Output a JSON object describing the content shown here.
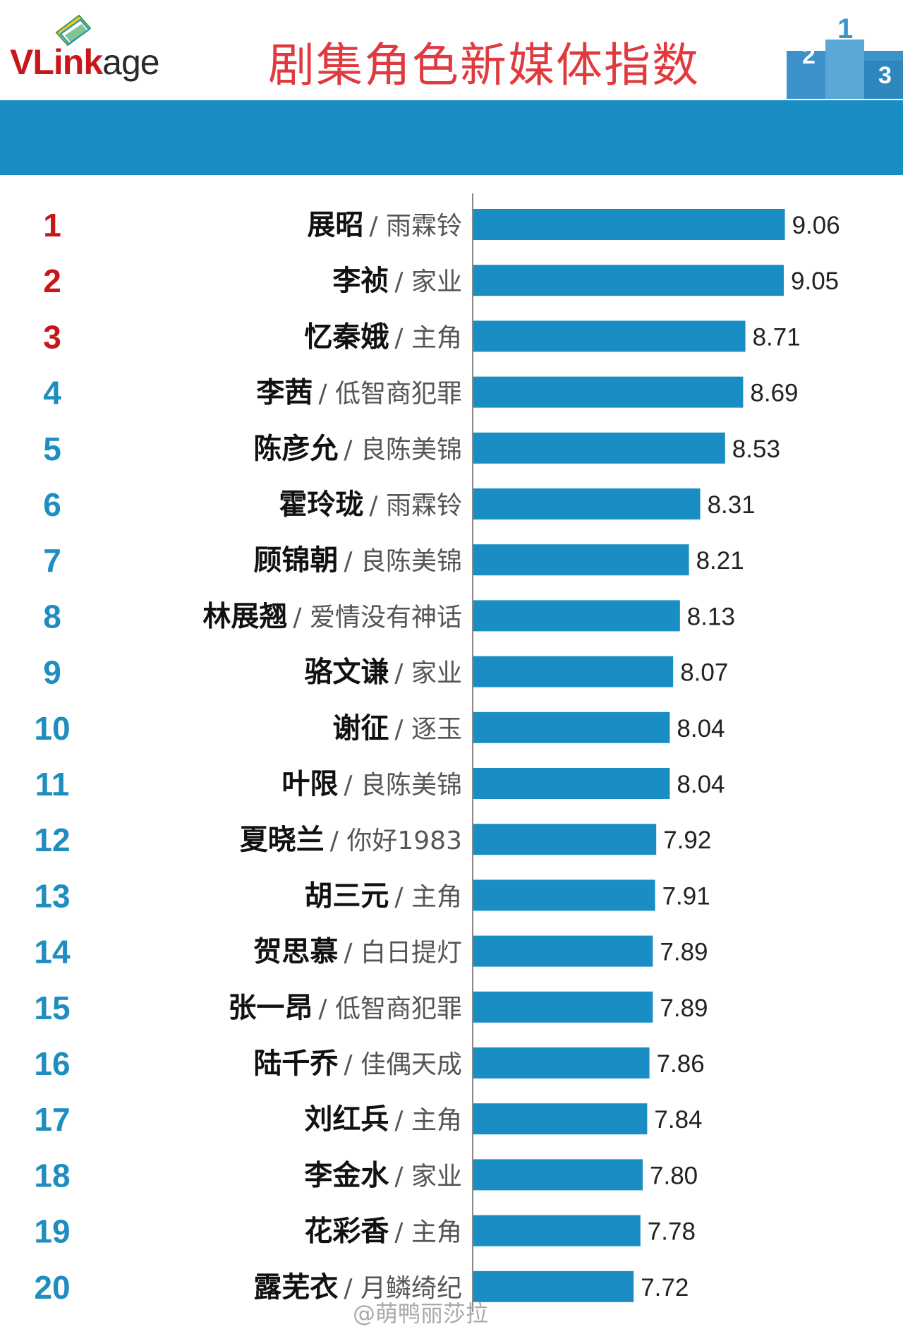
{
  "header": {
    "logo_text_part1": "VLink",
    "logo_text_part2": "age",
    "title": "剧集角色新媒体指数",
    "podium_ranks": [
      "2",
      "1",
      "3"
    ]
  },
  "watermark": "@萌鸭丽莎拉",
  "colors": {
    "bar": "#1a8ec4",
    "band": "#1a8ec4",
    "rank_top3": "#c8161d",
    "rank_other": "#1e8dc0",
    "title": "#e03a3e"
  },
  "chart_data": {
    "type": "bar",
    "orientation": "horizontal",
    "title": "剧集角色新媒体指数",
    "xlabel": "",
    "ylabel": "",
    "grid": false,
    "legend": "none",
    "xlim": [
      6.3,
      9.4
    ],
    "ranks": [
      "1",
      "2",
      "3",
      "4",
      "5",
      "6",
      "7",
      "8",
      "9",
      "10",
      "11",
      "12",
      "13",
      "14",
      "15",
      "16",
      "17",
      "18",
      "19",
      "20"
    ],
    "names": [
      "展昭",
      "李祯",
      "忆秦娥",
      "李茜",
      "陈彦允",
      "霍玲珑",
      "顾锦朝",
      "林展翘",
      "骆文谦",
      "谢征",
      "叶限",
      "夏晓兰",
      "胡三元",
      "贺思慕",
      "张一昂",
      "陆千乔",
      "刘红兵",
      "李金水",
      "花彩香",
      "露芜衣"
    ],
    "dramas": [
      "雨霖铃",
      "家业",
      "主角",
      "低智商犯罪",
      "良陈美锦",
      "雨霖铃",
      "良陈美锦",
      "爱情没有神话",
      "家业",
      "逐玉",
      "良陈美锦",
      "你好1983",
      "主角",
      "白日提灯",
      "低智商犯罪",
      "佳偶天成",
      "主角",
      "家业",
      "主角",
      "月鳞绮纪"
    ],
    "values": [
      9.06,
      9.05,
      8.71,
      8.69,
      8.53,
      8.31,
      8.21,
      8.13,
      8.07,
      8.04,
      8.04,
      7.92,
      7.91,
      7.89,
      7.89,
      7.86,
      7.84,
      7.8,
      7.78,
      7.72
    ],
    "value_labels": [
      "9.06",
      "9.05",
      "8.71",
      "8.69",
      "8.53",
      "8.31",
      "8.21",
      "8.13",
      "8.07",
      "8.04",
      "8.04",
      "7.92",
      "7.91",
      "7.89",
      "7.89",
      "7.86",
      "7.84",
      "7.80",
      "7.78",
      "7.72"
    ]
  }
}
